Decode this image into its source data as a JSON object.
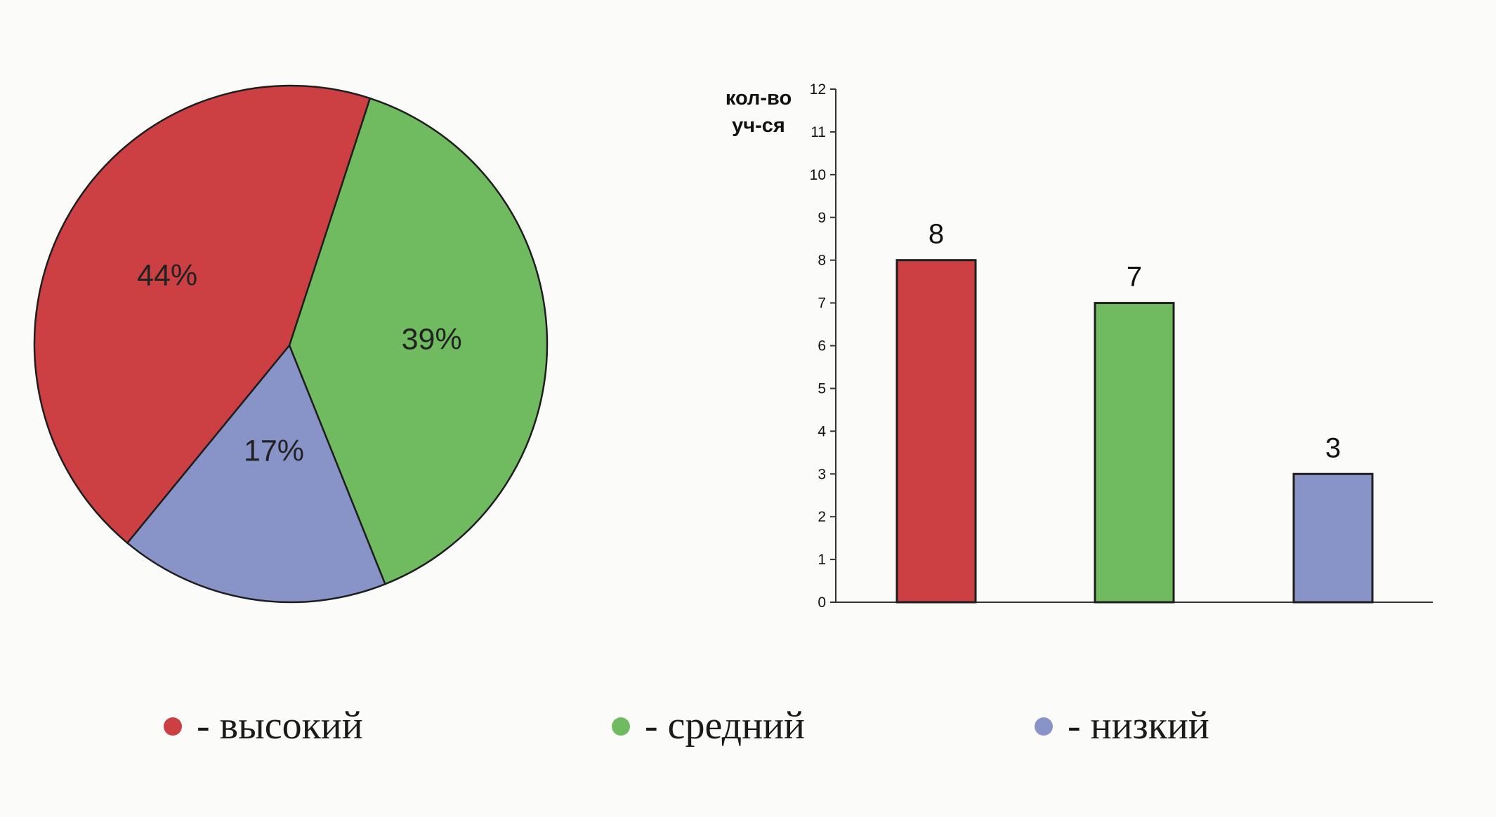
{
  "chart_data": [
    {
      "type": "pie",
      "categories": [
        "высокий",
        "средний",
        "низкий"
      ],
      "values": [
        44,
        39,
        17
      ],
      "labels": [
        "44%",
        "39%",
        "17%"
      ],
      "colors": [
        "#cc4044",
        "#70bb60",
        "#8894c8"
      ]
    },
    {
      "type": "bar",
      "categories": [
        "высокий",
        "средний",
        "низкий"
      ],
      "values": [
        8,
        7,
        3
      ],
      "data_labels": [
        "8",
        "7",
        "3"
      ],
      "colors": [
        "#cc4044",
        "#70bb60",
        "#8894c8"
      ],
      "ylabel_lines": [
        "кол-во",
        "уч-ся"
      ],
      "ylim": [
        0,
        12
      ],
      "yticks": [
        "0",
        "1",
        "2",
        "3",
        "4",
        "5",
        "6",
        "7",
        "8",
        "9",
        "10",
        "11",
        "12"
      ],
      "grid": false
    }
  ],
  "legend": {
    "items": [
      {
        "label": "- высокий",
        "color": "#cc4044"
      },
      {
        "label": "- средний",
        "color": "#70bb60"
      },
      {
        "label": "- низкий",
        "color": "#8894c8"
      }
    ]
  }
}
